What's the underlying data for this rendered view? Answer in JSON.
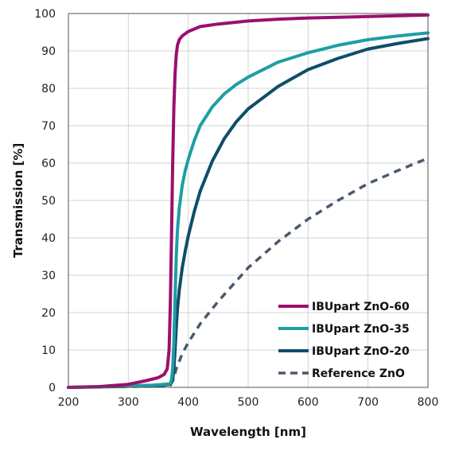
{
  "chart_data": {
    "type": "line",
    "title": "",
    "xlabel": "Wavelength [nm]",
    "ylabel": "Transmission [%]",
    "xlim": [
      200,
      800
    ],
    "ylim": [
      0,
      100
    ],
    "xticks": [
      "200",
      "300",
      "400",
      "500",
      "600",
      "700",
      "800"
    ],
    "yticks": [
      "0",
      "10",
      "20",
      "30",
      "40",
      "50",
      "60",
      "70",
      "80",
      "90",
      "100"
    ],
    "grid": true,
    "legend_position": "bottom-right",
    "series": [
      {
        "name": "IBUpart ZnO-60",
        "color": "#9b0f6e",
        "dash": "solid",
        "x": [
          200,
          250,
          300,
          330,
          350,
          360,
          365,
          368,
          370,
          372,
          374,
          376,
          378,
          380,
          382,
          385,
          390,
          395,
          400,
          420,
          450,
          500,
          550,
          600,
          650,
          700,
          750,
          800
        ],
        "y": [
          0,
          0.2,
          0.8,
          1.8,
          2.6,
          3.5,
          5,
          10,
          22,
          40,
          60,
          75,
          84,
          89,
          91.5,
          93,
          94,
          94.6,
          95.2,
          96.5,
          97.2,
          98,
          98.5,
          98.8,
          99,
          99.2,
          99.4,
          99.6
        ]
      },
      {
        "name": "IBUpart ZnO-35",
        "color": "#1e9ea3",
        "dash": "solid",
        "x": [
          200,
          250,
          300,
          340,
          360,
          370,
          372,
          374,
          376,
          378,
          380,
          382,
          385,
          390,
          395,
          400,
          410,
          420,
          440,
          460,
          480,
          500,
          550,
          600,
          650,
          700,
          750,
          800
        ],
        "y": [
          0,
          0.2,
          0.4,
          0.6,
          0.8,
          1,
          2,
          5,
          12,
          24,
          35,
          42,
          48,
          54,
          58,
          61,
          66,
          70,
          75,
          78.5,
          81,
          83,
          87,
          89.5,
          91.5,
          93,
          94,
          94.8
        ]
      },
      {
        "name": "IBUpart ZnO-20",
        "color": "#0f4d6a",
        "dash": "solid",
        "x": [
          200,
          250,
          300,
          340,
          360,
          370,
          374,
          376,
          378,
          380,
          382,
          385,
          390,
          395,
          400,
          410,
          420,
          440,
          460,
          480,
          500,
          550,
          600,
          650,
          700,
          750,
          800
        ],
        "y": [
          0,
          0.1,
          0.3,
          0.5,
          0.6,
          0.8,
          2,
          5,
          10,
          16,
          21,
          26,
          32,
          36.5,
          40.5,
          47,
          52.5,
          60.5,
          66.5,
          71,
          74.5,
          80.5,
          85,
          88,
          90.5,
          92,
          93.3
        ]
      },
      {
        "name": "Reference ZnO",
        "color": "#4a5a6e",
        "dash": "dashed",
        "x": [
          200,
          250,
          300,
          350,
          370,
          375,
          380,
          385,
          390,
          400,
          420,
          450,
          500,
          550,
          600,
          650,
          700,
          750,
          800
        ],
        "y": [
          0,
          0.1,
          0.2,
          0.3,
          0.5,
          2,
          5,
          7,
          9,
          12,
          17,
          23,
          32,
          39,
          45,
          50,
          54.5,
          58,
          61.3
        ]
      }
    ]
  }
}
